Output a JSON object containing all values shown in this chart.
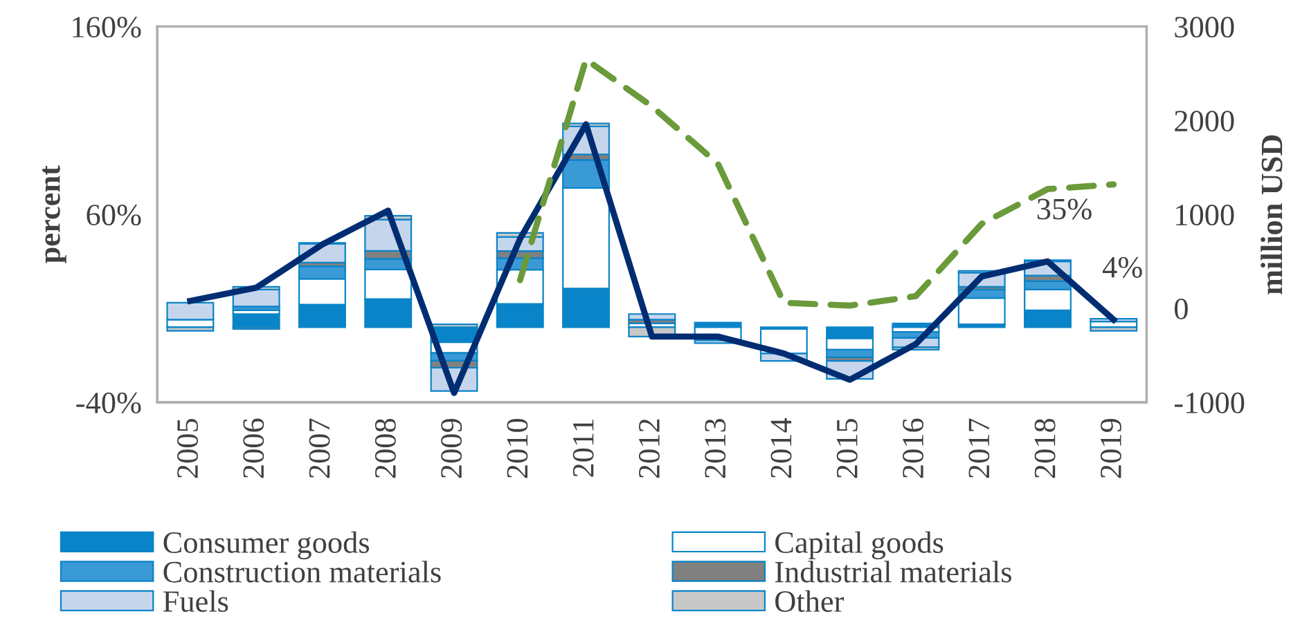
{
  "chart_data": {
    "type": "bar",
    "stacked": true,
    "categories": [
      "2005",
      "2006",
      "2007",
      "2008",
      "2009",
      "2010",
      "2011",
      "2012",
      "2013",
      "2014",
      "2015",
      "2016",
      "2017",
      "2018",
      "2019"
    ],
    "ylabel": "percent",
    "y2label": "million USD",
    "ylim": [
      -40,
      160
    ],
    "yticks": [
      {
        "value": -40,
        "label": "-40%"
      },
      {
        "value": 60,
        "label": "60%"
      },
      {
        "value": 160,
        "label": "160%"
      }
    ],
    "y2lim": [
      -1000,
      3000
    ],
    "y2ticks": [
      -1000,
      0,
      1000,
      2000,
      3000
    ],
    "grid": false,
    "legend": "bottom",
    "series": [
      {
        "name": "Consumer goods",
        "color": "#0a84c8",
        "values": [
          null,
          7,
          12,
          15,
          -8,
          12.4,
          20.6,
          null,
          2.5,
          -1,
          -6,
          2,
          1.5,
          9,
          null
        ]
      },
      {
        "name": "Capital goods",
        "color": "#ffffff",
        "values": [
          4,
          2,
          13.7,
          15.7,
          -5.7,
          18.2,
          53.5,
          2,
          -7,
          -13,
          -6,
          -2.5,
          14,
          11,
          3
        ]
      },
      {
        "name": "Construction materials",
        "color": "#3a9ad6",
        "values": [
          null,
          2,
          6.7,
          5.7,
          -4.2,
          6.2,
          14.9,
          null,
          null,
          null,
          -4,
          -3.2,
          4.5,
          4.5,
          null
        ]
      },
      {
        "name": "Industrial materials",
        "color": "#808080",
        "values": [
          null,
          -1,
          2,
          4.2,
          -3.7,
          3.7,
          3,
          2,
          null,
          null,
          -2,
          null,
          1.5,
          3,
          null
        ]
      },
      {
        "name": "Fuels",
        "color": "#c5d5ec",
        "values": [
          9,
          9,
          10,
          16.7,
          -12.4,
          7.5,
          14.9,
          3,
          -1.5,
          -4,
          -9.5,
          -5,
          7.5,
          7.5,
          1.5
        ]
      },
      {
        "name": "Other",
        "color": "#c8c8c8",
        "values": [
          -2,
          1.5,
          0.5,
          2,
          1.5,
          2.2,
          1.5,
          -5,
          null,
          null,
          null,
          -1.3,
          1,
          0.7,
          -2
        ]
      },
      {
        "type": "line",
        "color": "#002d72",
        "line_style": "solid",
        "values": [
          14,
          21,
          44,
          62,
          -35,
          47,
          108,
          -5,
          -5,
          -14,
          -28,
          -9,
          27,
          35,
          4
        ],
        "value_labels": [
          null,
          null,
          null,
          null,
          null,
          null,
          null,
          null,
          null,
          null,
          null,
          null,
          null,
          "35%",
          "4%"
        ]
      },
      {
        "type": "line",
        "axis": "y2",
        "color": "#6a9a3a",
        "line_style": "dashed",
        "values": [
          null,
          null,
          null,
          null,
          null,
          300,
          2650,
          2150,
          1540,
          60,
          30,
          130,
          900,
          1270,
          1320
        ]
      }
    ]
  }
}
